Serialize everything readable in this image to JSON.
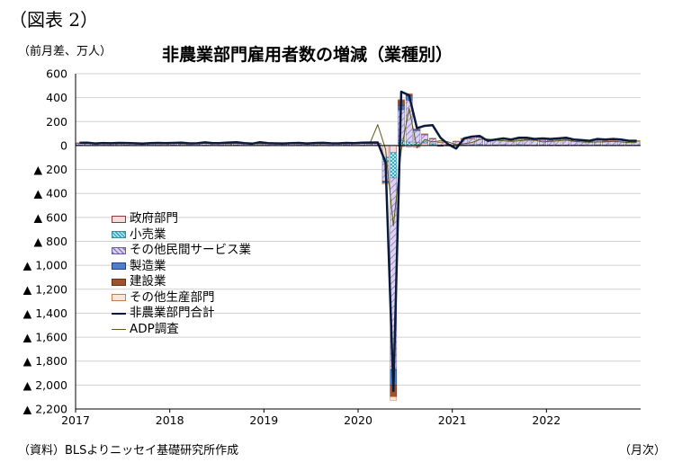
{
  "header": {
    "figure_label": "（図表 2）",
    "unit": "（前月差、万人）",
    "title": "非農業部門雇用者数の増減（業種別）"
  },
  "footer": {
    "source": "（資料）BLSよりニッセイ基礎研究所作成",
    "period_unit": "（月次）"
  },
  "legend": [
    {
      "key": "government",
      "label": "政府部門",
      "kind": "box",
      "fill": "#f6dcdc",
      "stroke": "#8b3a3a"
    },
    {
      "key": "retail",
      "label": "小売業",
      "kind": "box",
      "fill": "#7fd0e0",
      "stroke": "#3a8aa0"
    },
    {
      "key": "other_services",
      "label": "その他民間サービス業",
      "kind": "box",
      "fill": "#c9bce6",
      "stroke": "#6a5aa0"
    },
    {
      "key": "manufacturing",
      "label": "製造業",
      "kind": "box",
      "fill": "#4f7fc8",
      "stroke": "#1f3f80"
    },
    {
      "key": "construction",
      "label": "建設業",
      "kind": "box",
      "fill": "#a0522d",
      "stroke": "#6a2f10"
    },
    {
      "key": "other_goods",
      "label": "その他生産部門",
      "kind": "box",
      "fill": "#fde4d4",
      "stroke": "#c87a50"
    },
    {
      "key": "nonfarm_total",
      "label": "非農業部門合計",
      "kind": "line",
      "color": "#0a1a3a",
      "width": 2.5
    },
    {
      "key": "adp",
      "label": "ADP調査",
      "kind": "line",
      "color": "#5a5a1a",
      "width": 1
    }
  ],
  "chart_data": {
    "type": "bar",
    "stacked": true,
    "frequency": "monthly",
    "x_start": "2017-01",
    "xlim": [
      "2017-01",
      "2022-12"
    ],
    "x_tick_labels": [
      "2017",
      "2018",
      "2019",
      "2020",
      "2021",
      "2022"
    ],
    "ylim": [
      -2200,
      600
    ],
    "y_ticks": [
      600,
      400,
      200,
      0,
      -200,
      -400,
      -600,
      -800,
      -1000,
      -1200,
      -1400,
      -1600,
      -1800,
      -2000,
      -2200
    ],
    "y_tick_labels": [
      "600",
      "400",
      "200",
      "0",
      "▲ 200",
      "▲ 400",
      "▲ 600",
      "▲ 800",
      "▲ 1,000",
      "▲ 1,200",
      "▲ 1,400",
      "▲ 1,600",
      "▲ 1,800",
      "▲ 2,000",
      "▲ 2,200"
    ],
    "grid": "horizontal",
    "legend_position": "left-middle",
    "series": [
      {
        "key": "government",
        "name": "政府部門",
        "type": "bar",
        "values": [
          2,
          1,
          1,
          2,
          1,
          1,
          2,
          1,
          1,
          2,
          1,
          1,
          2,
          1,
          2,
          1,
          1,
          2,
          1,
          1,
          2,
          1,
          1,
          2,
          1,
          2,
          1,
          1,
          2,
          1,
          1,
          2,
          1,
          1,
          2,
          1,
          1,
          2,
          1,
          -98,
          -58,
          -8,
          -10,
          -15,
          20,
          5,
          -3,
          -4,
          2,
          3,
          3,
          4,
          3,
          2,
          4,
          2,
          3,
          3,
          2,
          3,
          3,
          2,
          3,
          4,
          3,
          2,
          4,
          3,
          2,
          3,
          2,
          3
        ]
      },
      {
        "key": "retail",
        "name": "小売業",
        "type": "bar",
        "values": [
          2,
          1,
          2,
          1,
          2,
          1,
          2,
          1,
          2,
          1,
          2,
          1,
          2,
          1,
          2,
          1,
          2,
          1,
          2,
          1,
          2,
          1,
          2,
          1,
          2,
          1,
          2,
          1,
          2,
          1,
          2,
          1,
          2,
          1,
          2,
          1,
          2,
          1,
          1,
          -38,
          -212,
          40,
          30,
          25,
          10,
          10,
          5,
          3,
          1,
          3,
          4,
          5,
          1,
          4,
          3,
          1,
          5,
          3,
          2,
          3,
          2,
          3,
          2,
          1,
          2,
          1,
          2,
          1,
          2,
          1,
          2,
          1
        ]
      },
      {
        "key": "other_services",
        "name": "その他民間サービス業",
        "type": "bar",
        "values": [
          15,
          16,
          12,
          14,
          13,
          14,
          15,
          13,
          14,
          12,
          15,
          14,
          14,
          13,
          15,
          14,
          15,
          13,
          14,
          14,
          15,
          13,
          12,
          14,
          14,
          13,
          12,
          14,
          13,
          12,
          14,
          13,
          12,
          13,
          14,
          13,
          15,
          14,
          16,
          -160,
          -1600,
          260,
          350,
          100,
          60,
          40,
          20,
          5,
          30,
          50,
          50,
          60,
          40,
          40,
          45,
          35,
          45,
          45,
          40,
          40,
          40,
          45,
          45,
          40,
          35,
          35,
          40,
          35,
          35,
          40,
          35,
          35
        ]
      },
      {
        "key": "manufacturing",
        "name": "製造業",
        "type": "bar",
        "values": [
          1,
          1,
          1,
          1,
          1,
          1,
          1,
          1,
          1,
          1,
          1,
          1,
          2,
          2,
          1,
          2,
          2,
          1,
          2,
          2,
          1,
          2,
          2,
          1,
          1,
          1,
          1,
          1,
          1,
          1,
          1,
          1,
          1,
          1,
          1,
          1,
          1,
          1,
          1,
          -14,
          -130,
          35,
          36,
          10,
          5,
          5,
          3,
          2,
          2,
          2,
          3,
          4,
          3,
          2,
          4,
          3,
          3,
          4,
          3,
          2,
          3,
          2,
          3,
          2,
          3,
          2,
          2,
          2,
          2,
          2,
          2,
          1
        ]
      },
      {
        "key": "construction",
        "name": "建設業",
        "type": "bar",
        "values": [
          2,
          1,
          1,
          1,
          1,
          1,
          1,
          1,
          1,
          1,
          1,
          1,
          1,
          1,
          1,
          1,
          1,
          1,
          1,
          1,
          1,
          1,
          1,
          1,
          1,
          1,
          1,
          1,
          1,
          1,
          1,
          1,
          1,
          1,
          1,
          1,
          1,
          1,
          1,
          -3,
          -98,
          45,
          15,
          3,
          2,
          1,
          -2,
          1,
          1,
          1,
          1,
          2,
          1,
          1,
          1,
          1,
          1,
          1,
          1,
          1,
          1,
          1,
          1,
          1,
          1,
          1,
          1,
          1,
          1,
          1,
          1,
          1
        ]
      },
      {
        "key": "other_goods",
        "name": "その他生産部門",
        "type": "bar",
        "values": [
          1,
          1,
          1,
          1,
          1,
          1,
          1,
          1,
          1,
          1,
          1,
          1,
          1,
          1,
          1,
          1,
          1,
          1,
          1,
          1,
          1,
          1,
          1,
          1,
          1,
          1,
          1,
          1,
          1,
          1,
          1,
          1,
          1,
          1,
          1,
          1,
          1,
          1,
          1,
          -10,
          -30,
          5,
          3,
          2,
          1,
          1,
          1,
          1,
          1,
          1,
          1,
          1,
          1,
          1,
          1,
          1,
          1,
          1,
          1,
          1,
          1,
          1,
          1,
          1,
          1,
          1,
          1,
          1,
          1,
          1,
          1,
          1
        ]
      },
      {
        "key": "nonfarm_total",
        "name": "非農業部門合計",
        "type": "line",
        "values": [
          23,
          24,
          17,
          21,
          19,
          22,
          21,
          19,
          16,
          20,
          22,
          20,
          22,
          24,
          18,
          19,
          27,
          20,
          21,
          25,
          28,
          20,
          16,
          28,
          20,
          18,
          17,
          20,
          22,
          17,
          21,
          23,
          19,
          18,
          22,
          20,
          24,
          25,
          26,
          -140,
          -2050,
          450,
          420,
          145,
          165,
          170,
          65,
          10,
          -25,
          60,
          75,
          80,
          40,
          50,
          60,
          50,
          65,
          65,
          55,
          60,
          55,
          60,
          65,
          50,
          45,
          40,
          55,
          50,
          55,
          50,
          40,
          40
        ]
      },
      {
        "key": "adp",
        "name": "ADP調査",
        "type": "line",
        "values": [
          18,
          19,
          14,
          16,
          15,
          17,
          16,
          14,
          15,
          16,
          17,
          17,
          18,
          19,
          17,
          16,
          18,
          19,
          17,
          16,
          17,
          18,
          17,
          16,
          17,
          15,
          16,
          17,
          18,
          16,
          17,
          15,
          16,
          17,
          18,
          17,
          19,
          18,
          175,
          -30,
          -670,
          -40,
          310,
          -20,
          50,
          30,
          40,
          30,
          8,
          15,
          25,
          50,
          55,
          45,
          40,
          35,
          40,
          45,
          45,
          30,
          35,
          40,
          45,
          35,
          30,
          28,
          30,
          30,
          35,
          30,
          25,
          25
        ]
      }
    ]
  }
}
